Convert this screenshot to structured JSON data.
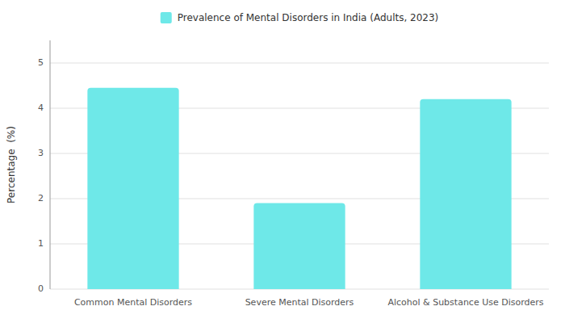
{
  "chart_data": {
    "type": "bar",
    "categories": [
      "Common Mental Disorders",
      "Severe Mental Disorders",
      "Alcohol & Substance Use Disorders"
    ],
    "series": [
      {
        "name": "Prevalence of Mental Disorders in India (Adults, 2023)",
        "color": "#6ee8e8",
        "values": [
          4.45,
          1.9,
          4.2
        ]
      }
    ],
    "ylabel": "Percentage  (%)",
    "ylim": [
      0,
      5.5
    ],
    "yticks": [
      0,
      1,
      2,
      3,
      4,
      5
    ],
    "grid": true,
    "legend": "top"
  }
}
